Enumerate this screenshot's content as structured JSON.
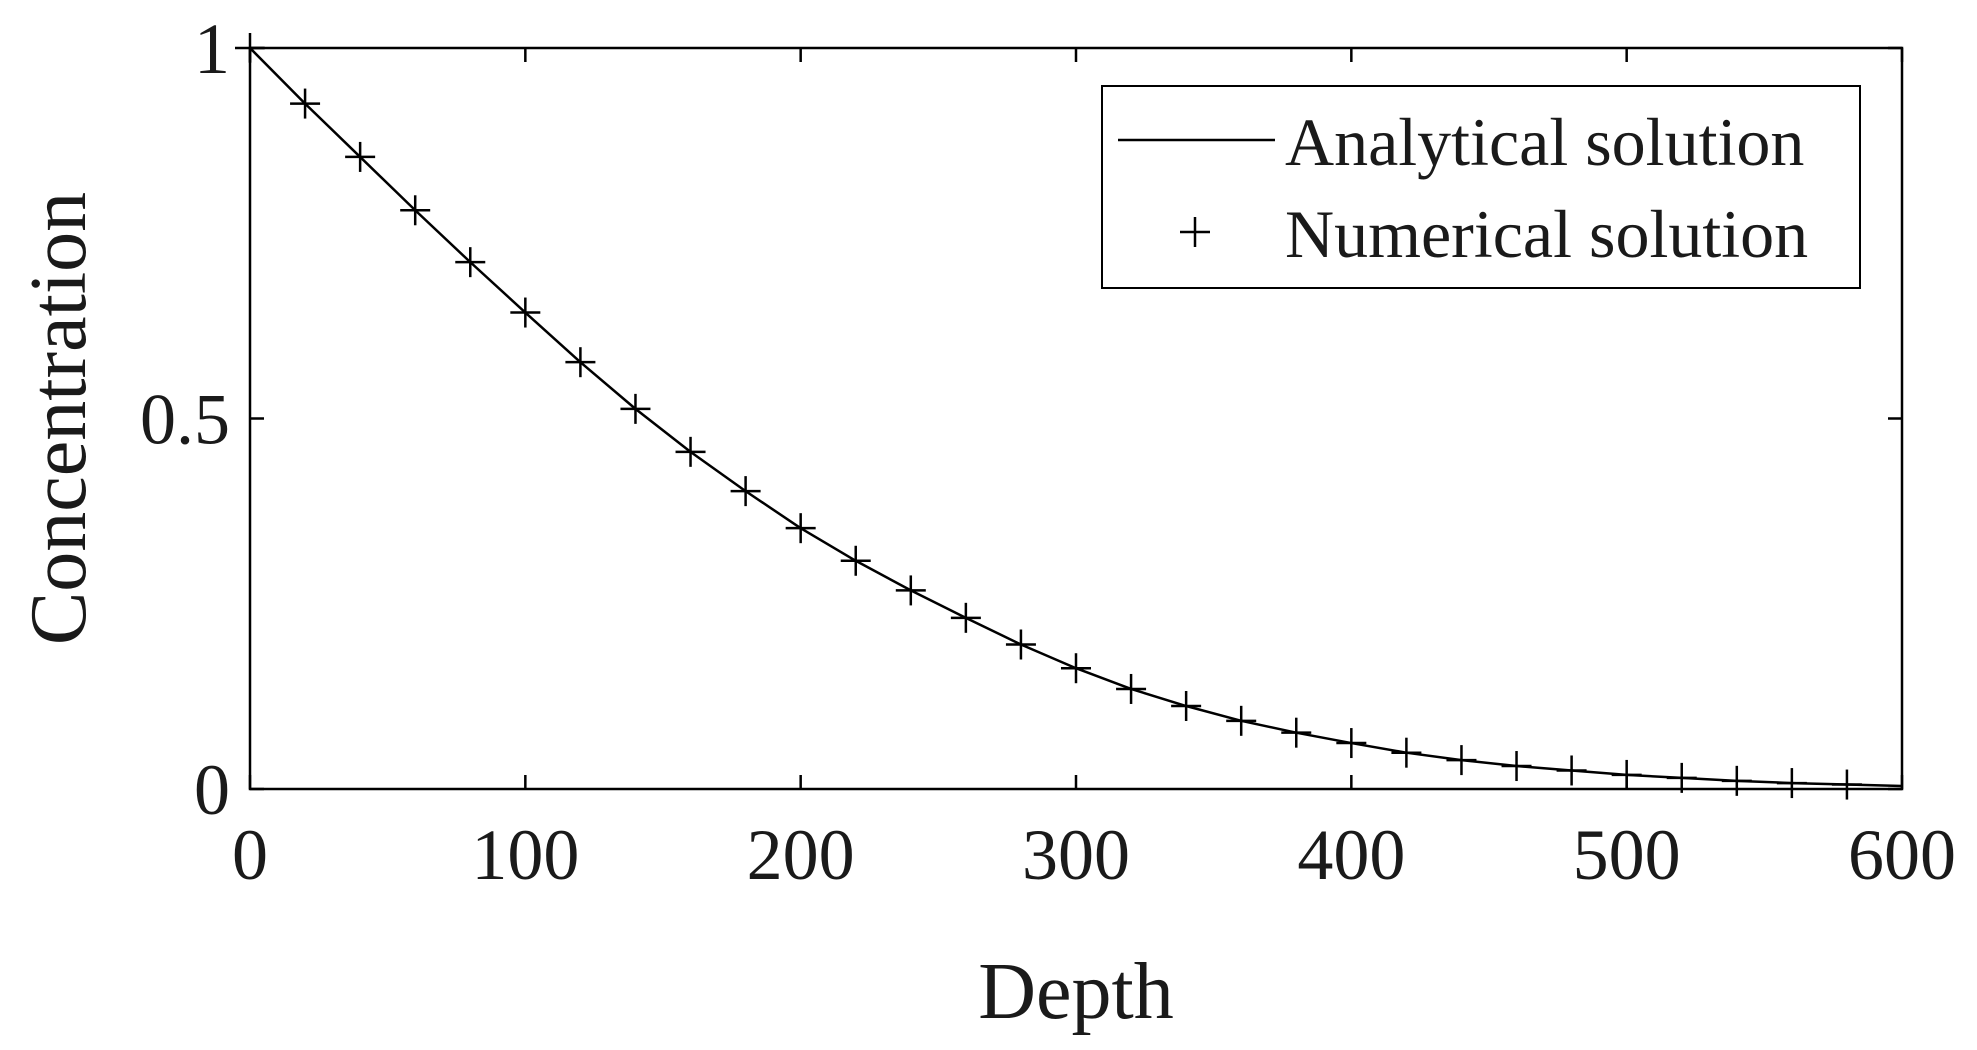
{
  "chart_data": {
    "type": "line",
    "xlabel": "Depth",
    "ylabel": "Concentration",
    "xlim": [
      0,
      600
    ],
    "ylim": [
      0,
      1
    ],
    "x_ticks": [
      0,
      100,
      200,
      300,
      400,
      500,
      600
    ],
    "x_tick_labels": [
      "0",
      "100",
      "200",
      "300",
      "400",
      "500",
      "600"
    ],
    "y_ticks": [
      0,
      0.5,
      1
    ],
    "y_tick_labels": [
      "0",
      "0.5",
      "1"
    ],
    "grid": false,
    "legend_position": "top-right",
    "series": [
      {
        "name": "Analytical solution",
        "style": "line",
        "color": "#000000",
        "x": [
          0,
          20,
          40,
          60,
          80,
          100,
          120,
          140,
          160,
          180,
          200,
          220,
          240,
          260,
          280,
          300,
          320,
          340,
          360,
          380,
          400,
          420,
          440,
          460,
          480,
          500,
          520,
          540,
          560,
          580,
          600
        ],
        "y": [
          1.0,
          0.925,
          0.853,
          0.781,
          0.711,
          0.643,
          0.576,
          0.513,
          0.455,
          0.402,
          0.352,
          0.308,
          0.268,
          0.231,
          0.195,
          0.163,
          0.135,
          0.112,
          0.092,
          0.076,
          0.062,
          0.049,
          0.039,
          0.031,
          0.025,
          0.019,
          0.015,
          0.011,
          0.008,
          0.006,
          0.004
        ]
      },
      {
        "name": "Numerical solution",
        "style": "marker-plus",
        "color": "#000000",
        "x": [
          0,
          20,
          40,
          60,
          80,
          100,
          120,
          140,
          160,
          180,
          200,
          220,
          240,
          260,
          280,
          300,
          320,
          340,
          360,
          380,
          400,
          420,
          440,
          460,
          480,
          500,
          520,
          540,
          560,
          580
        ],
        "y": [
          1.0,
          0.925,
          0.853,
          0.781,
          0.711,
          0.643,
          0.576,
          0.513,
          0.455,
          0.402,
          0.352,
          0.308,
          0.268,
          0.231,
          0.195,
          0.163,
          0.135,
          0.112,
          0.092,
          0.076,
          0.062,
          0.049,
          0.039,
          0.031,
          0.025,
          0.019,
          0.015,
          0.011,
          0.008,
          0.006
        ]
      }
    ]
  }
}
